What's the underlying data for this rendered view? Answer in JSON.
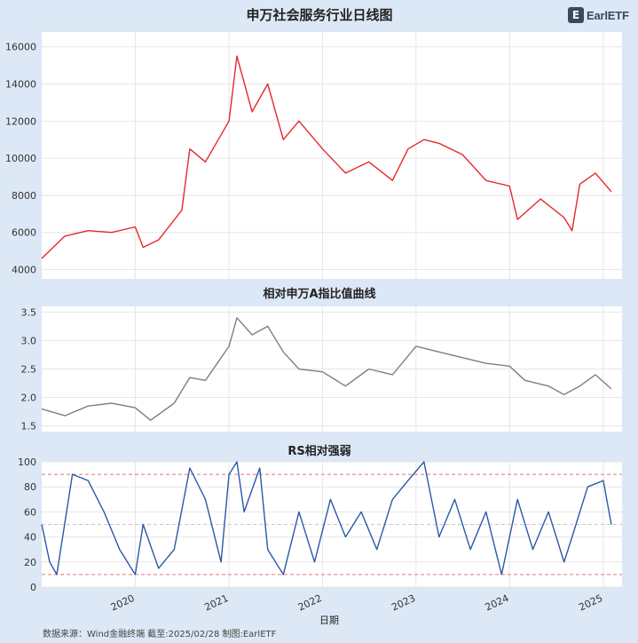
{
  "brand": {
    "logo_text": "EarlETF"
  },
  "footer": {
    "source": "数据来源：Wind金融终端 截至:2025/02/28 制图:EarlETF"
  },
  "xaxis": {
    "label": "日期",
    "ticks": [
      "2020",
      "2021",
      "2022",
      "2023",
      "2024",
      "2025"
    ]
  },
  "colors": {
    "price": "#e8262b",
    "relative": "#7f7f7f",
    "rs": "#2a59a8",
    "band": "#e57373",
    "mid": "#c8c8c8",
    "background": "#dce8f5"
  },
  "chart_data": [
    {
      "type": "line",
      "title": "申万社会服务行业日线图",
      "x": [
        "2019-01",
        "2019-04",
        "2019-07",
        "2019-10",
        "2020-01",
        "2020-02",
        "2020-04",
        "2020-07",
        "2020-08",
        "2020-10",
        "2021-01",
        "2021-02",
        "2021-04",
        "2021-06",
        "2021-08",
        "2021-10",
        "2022-01",
        "2022-04",
        "2022-07",
        "2022-10",
        "2022-12",
        "2023-02",
        "2023-04",
        "2023-07",
        "2023-10",
        "2024-01",
        "2024-02",
        "2024-05",
        "2024-08",
        "2024-09",
        "2024-10",
        "2024-12",
        "2025-02"
      ],
      "series": [
        {
          "values": [
            4600,
            5800,
            6100,
            6000,
            6300,
            5200,
            5600,
            7200,
            10500,
            9800,
            12000,
            15500,
            12500,
            14000,
            11000,
            12000,
            10500,
            9200,
            9800,
            8800,
            10500,
            11000,
            10800,
            10200,
            8800,
            8500,
            6700,
            7800,
            6800,
            6100,
            8600,
            9200,
            8200
          ]
        }
      ],
      "yticks": [
        4000,
        6000,
        8000,
        10000,
        12000,
        14000,
        16000
      ],
      "ylim": [
        3500,
        16800
      ]
    },
    {
      "type": "line",
      "title": "相对申万A指比值曲线",
      "x": [
        "2019-01",
        "2019-04",
        "2019-07",
        "2019-10",
        "2020-01",
        "2020-03",
        "2020-06",
        "2020-08",
        "2020-10",
        "2021-01",
        "2021-02",
        "2021-04",
        "2021-06",
        "2021-08",
        "2021-10",
        "2022-01",
        "2022-04",
        "2022-07",
        "2022-10",
        "2023-01",
        "2023-04",
        "2023-07",
        "2023-10",
        "2024-01",
        "2024-03",
        "2024-06",
        "2024-08",
        "2024-10",
        "2024-12",
        "2025-02"
      ],
      "series": [
        {
          "values": [
            1.8,
            1.68,
            1.85,
            1.9,
            1.82,
            1.6,
            1.9,
            2.35,
            2.3,
            2.9,
            3.4,
            3.1,
            3.25,
            2.8,
            2.5,
            2.45,
            2.2,
            2.5,
            2.4,
            2.9,
            2.8,
            2.7,
            2.6,
            2.55,
            2.3,
            2.2,
            2.05,
            2.2,
            2.4,
            2.15
          ]
        }
      ],
      "yticks": [
        1.5,
        2.0,
        2.5,
        3.0,
        3.5
      ],
      "ylim": [
        1.4,
        3.6
      ]
    },
    {
      "type": "line",
      "title": "RS相对强弱",
      "x": [
        "2019-01",
        "2019-02",
        "2019-03",
        "2019-05",
        "2019-07",
        "2019-09",
        "2019-11",
        "2020-01",
        "2020-02",
        "2020-04",
        "2020-06",
        "2020-08",
        "2020-10",
        "2020-12",
        "2021-01",
        "2021-02",
        "2021-03",
        "2021-05",
        "2021-06",
        "2021-08",
        "2021-10",
        "2021-12",
        "2022-02",
        "2022-04",
        "2022-06",
        "2022-08",
        "2022-10",
        "2022-12",
        "2023-02",
        "2023-04",
        "2023-06",
        "2023-08",
        "2023-10",
        "2023-12",
        "2024-02",
        "2024-04",
        "2024-06",
        "2024-08",
        "2024-09",
        "2024-11",
        "2025-01",
        "2025-02"
      ],
      "series": [
        {
          "values": [
            50,
            20,
            10,
            90,
            85,
            60,
            30,
            10,
            50,
            15,
            30,
            95,
            70,
            20,
            90,
            100,
            60,
            95,
            30,
            10,
            60,
            20,
            70,
            40,
            60,
            30,
            70,
            85,
            100,
            40,
            70,
            30,
            60,
            10,
            70,
            30,
            60,
            20,
            40,
            80,
            85,
            50
          ]
        }
      ],
      "yticks": [
        0,
        20,
        40,
        60,
        80,
        100
      ],
      "ylim": [
        0,
        100
      ],
      "reference_lines": [
        90,
        50,
        10
      ]
    }
  ]
}
